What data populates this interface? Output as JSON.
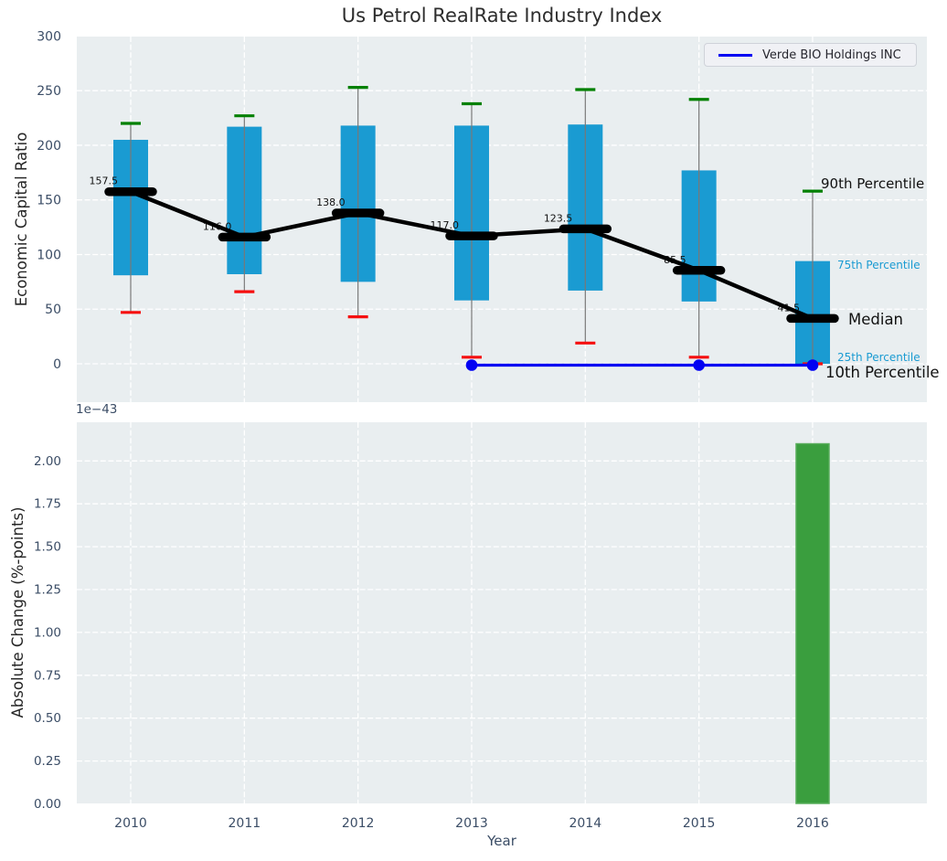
{
  "colors": {
    "box": "#1a9bd2",
    "p90_cap": "#008000",
    "p10_cap": "#f50f0f",
    "median_line": "#000000",
    "trend_line": "#000000",
    "company_line": "#0202f2",
    "bar": "#3a9e3e",
    "bar_edge": "#57ad5a",
    "axes_bg": "#e9eef0",
    "grid": "#ffffff",
    "whisker": "#787878",
    "tick_label": "#3b4d66",
    "annotation_cyan": "#1a9bd2"
  },
  "chart_data": [
    {
      "type": "boxplot",
      "title": "Us Petrol RealRate Industry Index",
      "ylabel": "Economic Capital Ratio",
      "categories": [
        2010,
        2011,
        2012,
        2013,
        2014,
        2015,
        2016
      ],
      "yticks": [
        0,
        50,
        100,
        150,
        200,
        250,
        300
      ],
      "ylim": [
        -35,
        301
      ],
      "grid": true,
      "legend": [
        "Verde BIO Holdings INC"
      ],
      "legend_position": "upper right",
      "series": [
        {
          "name": "90th Percentile",
          "values": [
            220,
            227,
            253,
            238,
            251,
            242,
            158
          ]
        },
        {
          "name": "75th Percentile",
          "values": [
            205,
            217,
            218,
            218,
            219,
            177,
            94
          ]
        },
        {
          "name": "Median",
          "values": [
            157.5,
            116.0,
            138.0,
            117.0,
            123.5,
            85.5,
            41.5
          ]
        },
        {
          "name": "25th Percentile",
          "values": [
            81,
            82,
            75,
            58,
            67,
            57,
            0
          ]
        },
        {
          "name": "10th Percentile",
          "values": [
            47,
            66,
            43,
            6,
            19,
            6,
            0
          ]
        }
      ],
      "median_labels": [
        "157.5",
        "116.0",
        "138.0",
        "117.0",
        "123.5",
        "85.5",
        "41.5"
      ],
      "company_line": {
        "name": "Verde BIO Holdings INC",
        "x": [
          2013,
          2015,
          2016
        ],
        "values": [
          0,
          0,
          0
        ]
      },
      "annotations": {
        "p90": "90th Percentile",
        "p75": "75th Percentile",
        "median": "Median",
        "p25": "25th Percentile",
        "p10": "10th Percentile"
      }
    },
    {
      "type": "bar",
      "ylabel": "Absolute Change (%-points)",
      "xlabel": "Year",
      "offset_text": "1e−43",
      "categories": [
        2010,
        2011,
        2012,
        2013,
        2014,
        2015,
        2016
      ],
      "values": [
        0,
        0,
        0,
        0,
        0,
        0,
        2.1
      ],
      "yticks": [
        "0.00",
        "0.25",
        "0.50",
        "0.75",
        "1.00",
        "1.25",
        "1.50",
        "1.75",
        "2.00"
      ],
      "ylim": [
        0,
        2.22
      ],
      "grid": true
    }
  ]
}
